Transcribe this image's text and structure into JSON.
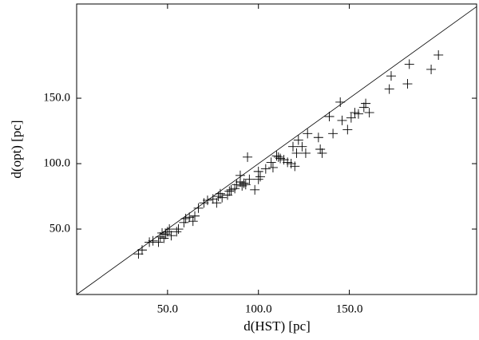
{
  "chart_data": {
    "type": "scatter",
    "x_label": "d(HST) [pc]",
    "y_label": "d(opt) [pc]",
    "xlim": [
      0,
      220
    ],
    "ylim": [
      0,
      222
    ],
    "xticks": [
      {
        "value": 50,
        "label": "50.0"
      },
      {
        "value": 100,
        "label": "100.0"
      },
      {
        "value": 150,
        "label": "150.0"
      }
    ],
    "yticks": [
      {
        "value": 50,
        "label": "50.0"
      },
      {
        "value": 100,
        "label": "100.0"
      },
      {
        "value": 150,
        "label": "150.0"
      }
    ],
    "identity_line": true,
    "marker": "plus",
    "color": "#000000",
    "x": [
      34,
      36,
      40,
      42,
      45,
      46,
      47,
      48,
      49,
      50,
      51,
      52,
      55,
      56,
      59,
      60,
      62,
      64,
      65,
      67,
      70,
      72,
      75,
      77,
      78,
      79,
      80,
      83,
      84,
      85,
      87,
      88,
      90,
      90,
      91,
      92,
      93,
      94,
      95,
      98,
      100,
      100,
      101,
      104,
      107,
      108,
      110,
      111,
      112,
      114,
      116,
      118,
      119,
      120,
      121,
      122,
      124,
      126,
      127,
      133,
      134,
      135,
      139,
      141,
      145,
      146,
      149,
      151,
      153,
      155,
      158,
      159,
      161,
      172,
      173,
      182,
      183,
      195,
      199
    ],
    "values": [
      31,
      34,
      40,
      41,
      40,
      44,
      47,
      43,
      46,
      48,
      50,
      45,
      48,
      50,
      55,
      58,
      59,
      56,
      60,
      66,
      70,
      72,
      73,
      70,
      75,
      77,
      74,
      76,
      79,
      80,
      81,
      84,
      86,
      91,
      83,
      85,
      84,
      105,
      88,
      80,
      88,
      94,
      90,
      96,
      101,
      97,
      106,
      105,
      104,
      103,
      101,
      100,
      113,
      98,
      108,
      118,
      113,
      108,
      123,
      120,
      111,
      108,
      136,
      123,
      147,
      133,
      126,
      135,
      139,
      138,
      143,
      146,
      139,
      157,
      167,
      161,
      176,
      172,
      183
    ]
  }
}
